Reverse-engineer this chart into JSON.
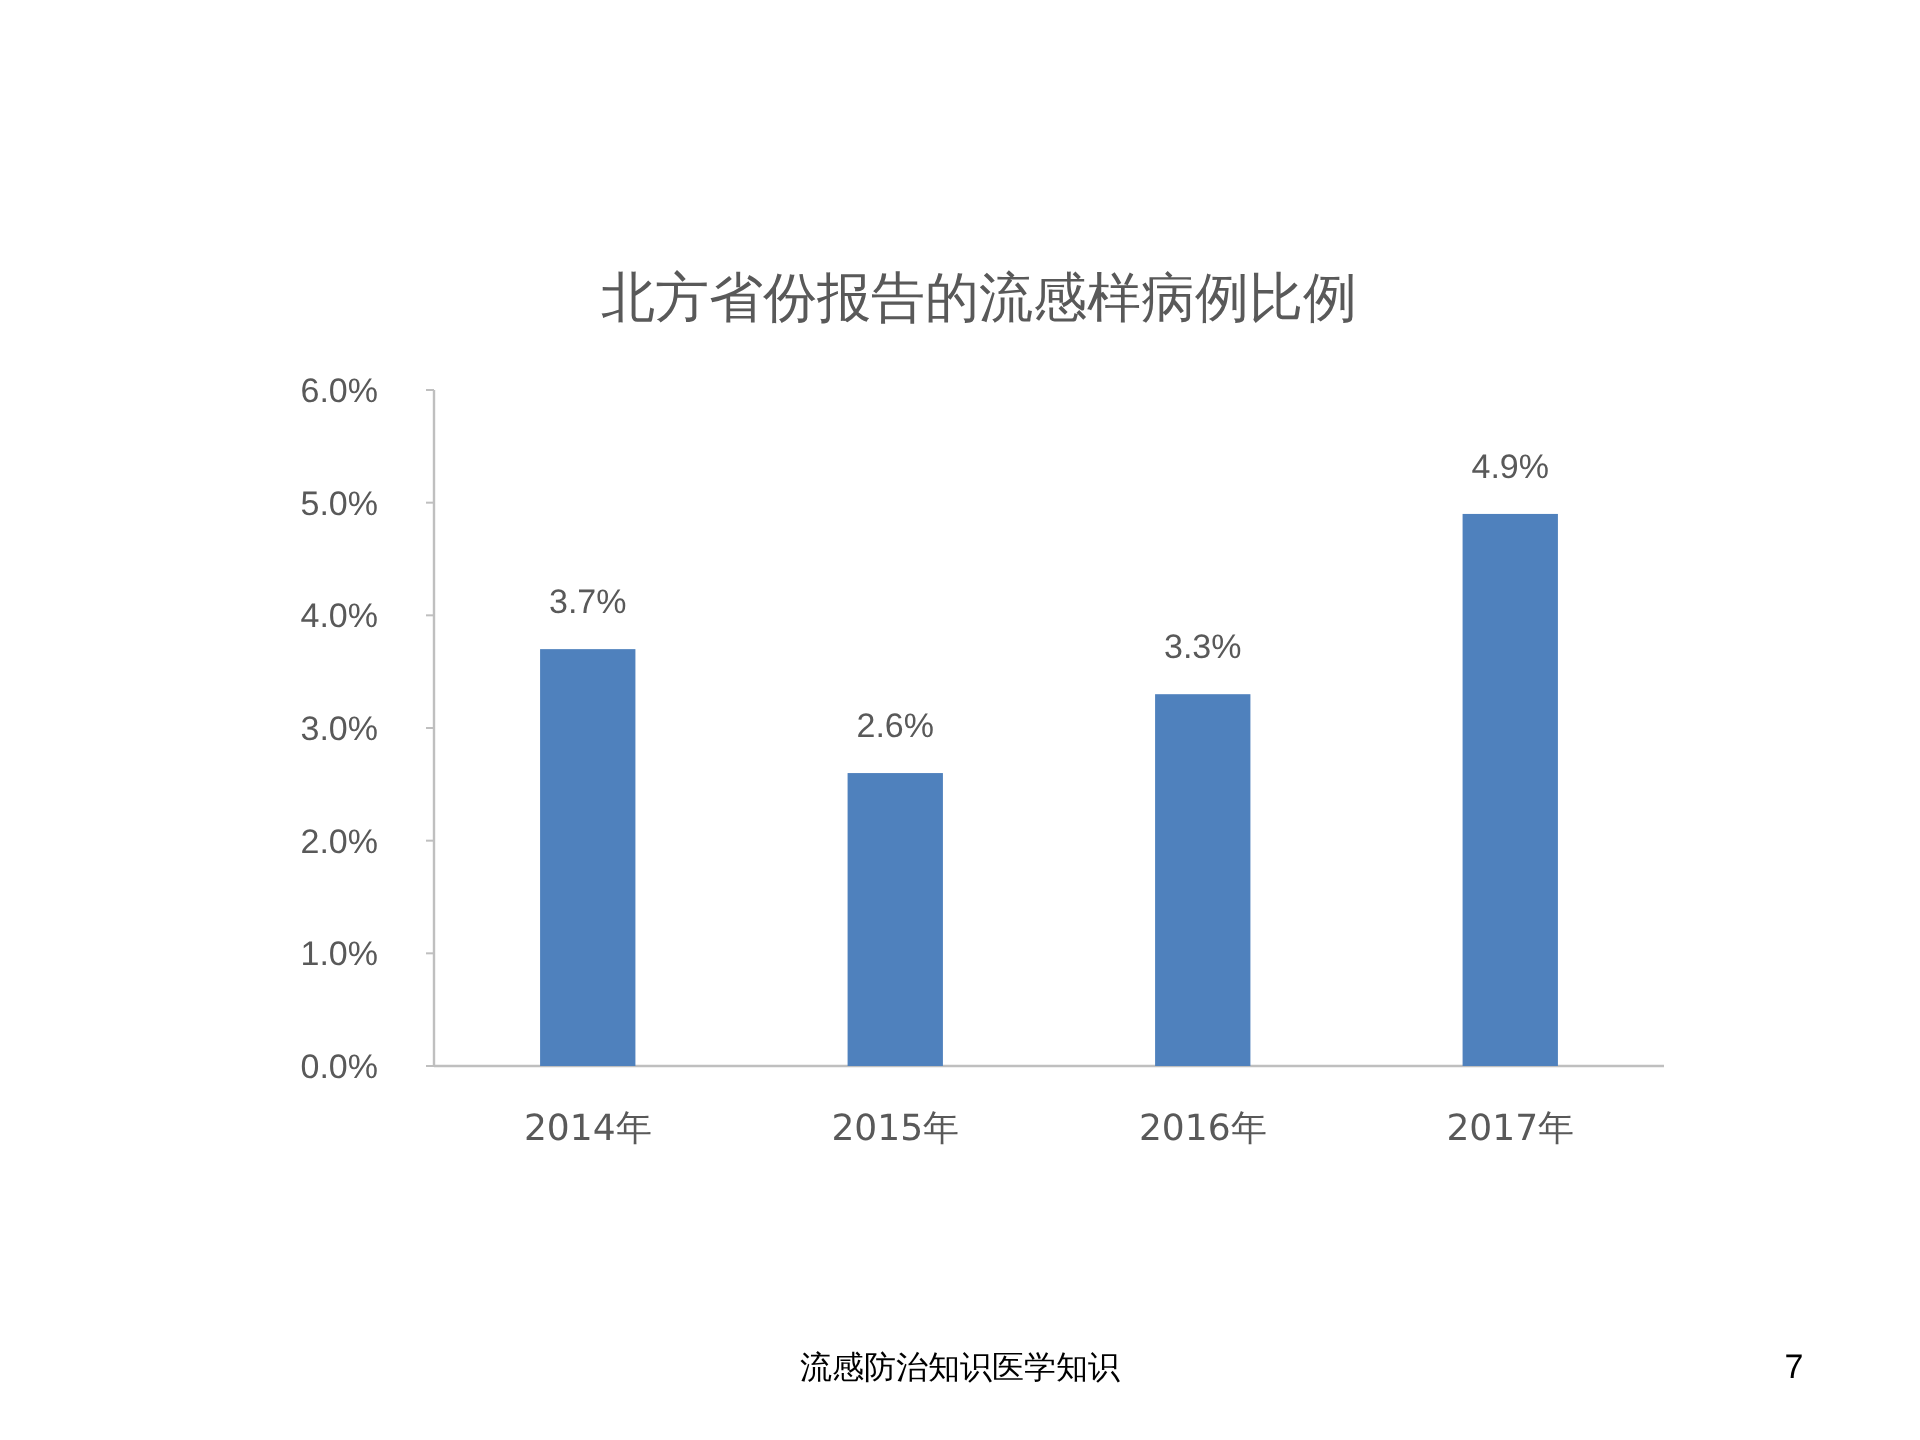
{
  "chart_data": {
    "type": "bar",
    "title": "北方省份报告的流感样病例比例",
    "categories": [
      "2014年",
      "2015年",
      "2016年",
      "2017年"
    ],
    "values": [
      3.7,
      2.6,
      3.3,
      4.9
    ],
    "value_labels": [
      "3.7%",
      "2.6%",
      "3.3%",
      "4.9%"
    ],
    "color": "#4f81bd",
    "ylim": [
      0,
      6
    ],
    "yticks": [
      {
        "value": 0,
        "label": "0.0%"
      },
      {
        "value": 1,
        "label": "1.0%"
      },
      {
        "value": 2,
        "label": "2.0%"
      },
      {
        "value": 3,
        "label": "3.0%"
      },
      {
        "value": 4,
        "label": "4.0%"
      },
      {
        "value": 5,
        "label": "5.0%"
      },
      {
        "value": 6,
        "label": "6.0%"
      }
    ],
    "annotations": [
      "流感防治知识医学知识",
      "7"
    ]
  }
}
